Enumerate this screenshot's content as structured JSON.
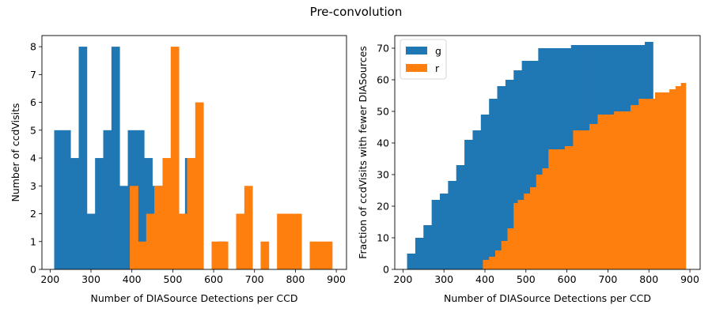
{
  "suptitle": "Pre-convolution",
  "chart_data": [
    {
      "type": "histogram",
      "xlabel": "Number of DIASource Detections per CCD",
      "ylabel": "Number of ccdVisits",
      "xlim": [
        180,
        925
      ],
      "ylim": [
        0,
        8.4
      ],
      "xticks": [
        200,
        300,
        400,
        500,
        600,
        700,
        800,
        900
      ],
      "yticks": [
        0,
        1,
        2,
        3,
        4,
        5,
        6,
        7,
        8
      ],
      "series": [
        {
          "name": "g",
          "color": "#1f77b4",
          "edges": [
            210,
            230,
            250,
            270,
            290,
            310,
            330,
            350,
            370,
            390,
            410,
            430,
            450,
            470,
            490,
            510,
            530,
            550,
            570,
            590,
            610,
            630,
            650,
            670,
            690,
            710,
            730,
            750,
            770,
            790,
            810
          ],
          "counts": [
            5,
            5,
            4,
            8,
            2,
            4,
            5,
            8,
            3,
            5,
            5,
            4,
            3,
            3,
            3,
            2,
            4,
            0,
            0,
            0,
            1,
            0,
            0,
            0,
            0,
            0,
            0,
            0,
            1,
            0
          ]
        },
        {
          "name": "r",
          "color": "#ff7f0e",
          "edges": [
            395,
            415,
            435,
            455,
            475,
            495,
            515,
            535,
            555,
            575,
            595,
            615,
            635,
            655,
            675,
            695,
            715,
            735,
            755,
            775,
            795,
            815,
            835,
            855,
            875,
            890
          ],
          "counts": [
            3,
            1,
            2,
            3,
            4,
            8,
            2,
            4,
            6,
            0,
            1,
            1,
            0,
            2,
            3,
            0,
            1,
            0,
            2,
            2,
            2,
            0,
            1,
            1,
            1
          ]
        }
      ]
    },
    {
      "type": "step-area",
      "xlabel": "Number of DIASource Detections per CCD",
      "ylabel": "Fraction of ccdVisits with fewer DIASources",
      "xlim": [
        180,
        925
      ],
      "ylim": [
        0,
        74
      ],
      "xticks": [
        200,
        300,
        400,
        500,
        600,
        700,
        800,
        900
      ],
      "yticks": [
        0,
        10,
        20,
        30,
        40,
        50,
        60,
        70
      ],
      "legend": "upper-left",
      "series": [
        {
          "name": "g",
          "color": "#1f77b4",
          "edges": [
            210,
            230,
            250,
            270,
            290,
            310,
            330,
            350,
            370,
            390,
            410,
            430,
            450,
            470,
            490,
            510,
            530,
            550,
            570,
            590,
            610,
            630,
            650,
            670,
            690,
            710,
            730,
            750,
            770,
            790,
            810
          ],
          "values": [
            5,
            10,
            14,
            22,
            24,
            28,
            33,
            41,
            44,
            49,
            54,
            58,
            60,
            63,
            66,
            66,
            70,
            70,
            70,
            70,
            71,
            71,
            71,
            71,
            71,
            71,
            71,
            71,
            71,
            72
          ]
        },
        {
          "name": "r",
          "color": "#ff7f0e",
          "edges": [
            395,
            410,
            425,
            440,
            455,
            470,
            480,
            495,
            510,
            525,
            540,
            555,
            575,
            595,
            615,
            635,
            655,
            675,
            695,
            715,
            735,
            755,
            775,
            795,
            815,
            835,
            850,
            865,
            878,
            890
          ],
          "values": [
            3,
            4,
            6,
            9,
            13,
            21,
            22,
            24,
            26,
            30,
            32,
            38,
            38,
            39,
            44,
            44,
            46,
            49,
            49,
            50,
            50,
            52,
            54,
            54,
            56,
            56,
            57,
            58,
            59
          ]
        }
      ]
    }
  ]
}
